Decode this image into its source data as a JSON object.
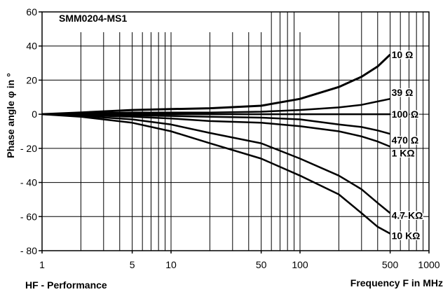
{
  "chart_data": {
    "type": "line",
    "title": "SMM0204-MS1",
    "xlabel": "Frequency F in MHz",
    "ylabel": "Phase angle φ in °",
    "footer": "HF - Performance",
    "x_scale": "log",
    "xlim": [
      1,
      1000
    ],
    "ylim": [
      -80,
      60
    ],
    "grid": true,
    "x_ticks": [
      {
        "value": 1,
        "label": "1"
      },
      {
        "value": 5,
        "label": "5"
      },
      {
        "value": 10,
        "label": "10"
      },
      {
        "value": 50,
        "label": "50"
      },
      {
        "value": 100,
        "label": "100"
      },
      {
        "value": 500,
        "label": "500"
      },
      {
        "value": 1000,
        "label": "1000"
      }
    ],
    "y_ticks": [
      {
        "value": 60,
        "label": "60"
      },
      {
        "value": 40,
        "label": "40"
      },
      {
        "value": 20,
        "label": "20"
      },
      {
        "value": 0,
        "label": "0"
      },
      {
        "value": -20,
        "label": "- 20"
      },
      {
        "value": -40,
        "label": "- 40"
      },
      {
        "value": -60,
        "label": "- 60"
      },
      {
        "value": -80,
        "label": "- 80"
      }
    ],
    "x": [
      1,
      2,
      5,
      10,
      20,
      50,
      100,
      200,
      300,
      400,
      500
    ],
    "series": [
      {
        "name": "10 Ω",
        "values": [
          0,
          1,
          2.5,
          3,
          3.5,
          5,
          9,
          16,
          22,
          28,
          35
        ]
      },
      {
        "name": "39 Ω",
        "values": [
          0,
          0.5,
          1,
          1,
          1,
          1.5,
          2.5,
          4,
          5.5,
          7.5,
          9
        ]
      },
      {
        "name": "100 Ω",
        "values": [
          0,
          0,
          0,
          0,
          0,
          0,
          0,
          0,
          0,
          0,
          0
        ]
      },
      {
        "name": "470 Ω",
        "values": [
          0,
          -0.3,
          -0.7,
          -1,
          -1.5,
          -2,
          -3,
          -6,
          -7.5,
          -9.5,
          -11.5
        ]
      },
      {
        "name": "1 KΩ",
        "values": [
          0,
          -0.5,
          -1.5,
          -2.5,
          -4,
          -5,
          -7,
          -10,
          -13,
          -16,
          -19
        ]
      },
      {
        "name": "4.7 KΩ",
        "values": [
          0,
          -1,
          -3,
          -6,
          -11,
          -17,
          -26,
          -36,
          -44,
          -52,
          -58
        ]
      },
      {
        "name": "10 KΩ",
        "values": [
          0,
          -1.5,
          -5,
          -10,
          -17,
          -26,
          -36,
          -47,
          -58,
          -66,
          -70
        ]
      }
    ]
  }
}
